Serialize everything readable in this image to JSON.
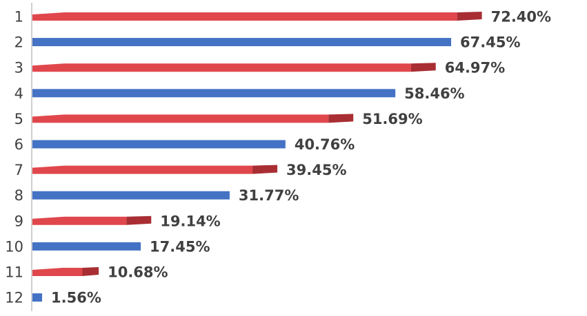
{
  "chart_data": {
    "type": "bar",
    "orientation": "horizontal",
    "categories": [
      "1",
      "2",
      "3",
      "4",
      "5",
      "6",
      "7",
      "8",
      "9",
      "10",
      "11",
      "12"
    ],
    "values": [
      72.4,
      67.45,
      64.97,
      58.46,
      51.69,
      40.76,
      39.45,
      31.77,
      19.14,
      17.45,
      10.68,
      1.56
    ],
    "value_labels": [
      "72.40%",
      "67.45%",
      "64.97%",
      "58.46%",
      "51.69%",
      "40.76%",
      "39.45%",
      "31.77%",
      "19.14%",
      "17.45%",
      "10.68%",
      "1.56%"
    ],
    "unit": "%",
    "bar_colors": [
      "#e0474c",
      "#4472c4",
      "#e0474c",
      "#4472c4",
      "#e0474c",
      "#4472c4",
      "#e0474c",
      "#4472c4",
      "#e0474c",
      "#4472c4",
      "#e0474c",
      "#4472c4"
    ],
    "title": "",
    "xlabel": "",
    "ylabel": "",
    "xlim": [
      0,
      80
    ],
    "grid": false,
    "legend": "none",
    "colors": {
      "red_bar": "#e0474c",
      "red_bar_shadow": "#a82e33",
      "blue_bar": "#4472c4",
      "text": "#404040",
      "axis": "#bfbfbf"
    }
  }
}
